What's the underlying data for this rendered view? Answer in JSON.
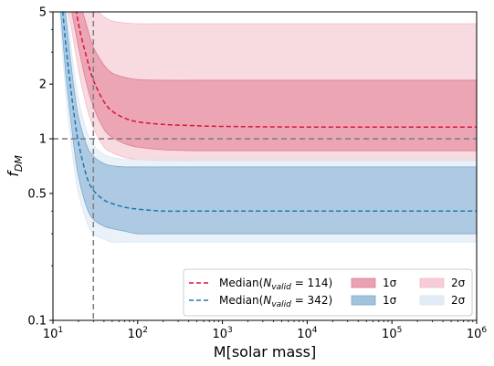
{
  "chart_data": {
    "type": "area",
    "xlabel": "M[solar mass]",
    "ylabel": "f_DM",
    "x_scale": "log",
    "y_scale": "log",
    "xlim": [
      10,
      1000000
    ],
    "ylim": [
      0.1,
      5
    ],
    "x_ticks": [
      10,
      100,
      1000,
      10000,
      100000,
      1000000
    ],
    "x_tick_labels": [
      {
        "base": "10",
        "exp": "1"
      },
      {
        "base": "10",
        "exp": "2"
      },
      {
        "base": "10",
        "exp": "3"
      },
      {
        "base": "10",
        "exp": "4"
      },
      {
        "base": "10",
        "exp": "5"
      },
      {
        "base": "10",
        "exp": "6"
      }
    ],
    "y_ticks": [
      0.1,
      0.5,
      1,
      2,
      5
    ],
    "y_tick_labels": [
      "0.1",
      "0.5",
      "1",
      "2",
      "5"
    ],
    "grid": false,
    "legend_position": "lower-right",
    "reference_lines": [
      {
        "orientation": "horizontal",
        "value": 1,
        "style": "dashed",
        "color": "#808080"
      },
      {
        "orientation": "vertical",
        "value": 30,
        "style": "dashed",
        "color": "#808080"
      }
    ],
    "series": [
      {
        "key": "red",
        "name": "Median(N_valid = 114)",
        "legend_median": {
          "prefix": "Median(",
          "sub": "valid",
          "value": " = 114)"
        },
        "legend_1sigma": "1σ",
        "legend_2sigma": "2σ",
        "color": "#dc143c",
        "band1_color": "#e07a90",
        "band2_color": "#f3bcc8",
        "x": [
          12,
          16,
          20,
          25,
          30,
          40,
          50,
          70,
          100,
          200,
          500,
          1000,
          10000,
          100000,
          1000000
        ],
        "median": [
          14,
          8,
          4.3,
          2.8,
          2.1,
          1.6,
          1.42,
          1.3,
          1.24,
          1.2,
          1.18,
          1.17,
          1.16,
          1.16,
          1.16
        ],
        "lower_1sigma": [
          10,
          5.5,
          3.2,
          2.0,
          1.5,
          1.13,
          1.02,
          0.94,
          0.9,
          0.87,
          0.86,
          0.86,
          0.86,
          0.86,
          0.86
        ],
        "upper_1sigma": [
          18,
          11,
          6.2,
          4.2,
          3.2,
          2.55,
          2.3,
          2.18,
          2.12,
          2.1,
          2.1,
          2.1,
          2.1,
          2.1,
          2.1
        ],
        "lower_2sigma": [
          8,
          4.4,
          2.4,
          1.5,
          1.15,
          0.9,
          0.84,
          0.79,
          0.77,
          0.76,
          0.76,
          0.76,
          0.76,
          0.76,
          0.76
        ],
        "upper_2sigma": [
          20,
          14,
          9,
          6.5,
          5.4,
          4.7,
          4.45,
          4.35,
          4.3,
          4.3,
          4.3,
          4.3,
          4.3,
          4.3,
          4.3
        ]
      },
      {
        "key": "blue",
        "name": "Median(N_valid = 342)",
        "legend_median": {
          "prefix": "Median(",
          "sub": "valid",
          "value": " = 342)"
        },
        "legend_1sigma": "1σ",
        "legend_2sigma": "2σ",
        "color": "#1f77b4",
        "band1_color": "#7aa9cf",
        "band2_color": "#d9e6f2",
        "x": [
          12,
          14,
          16,
          18,
          20,
          25,
          30,
          40,
          50,
          70,
          100,
          200,
          500,
          1000,
          10000,
          100000,
          1000000
        ],
        "median": [
          8,
          3.5,
          2.0,
          1.3,
          0.95,
          0.62,
          0.52,
          0.46,
          0.44,
          0.42,
          0.41,
          0.4,
          0.4,
          0.4,
          0.4,
          0.4,
          0.4
        ],
        "lower_1sigma": [
          6,
          2.4,
          1.35,
          0.85,
          0.62,
          0.42,
          0.36,
          0.33,
          0.32,
          0.31,
          0.3,
          0.3,
          0.3,
          0.3,
          0.3,
          0.3,
          0.3
        ],
        "upper_1sigma": [
          10,
          5.0,
          2.8,
          1.8,
          1.32,
          0.92,
          0.8,
          0.73,
          0.71,
          0.7,
          0.7,
          0.7,
          0.7,
          0.7,
          0.7,
          0.7,
          0.7
        ],
        "lower_2sigma": [
          5,
          1.9,
          1.05,
          0.67,
          0.5,
          0.35,
          0.3,
          0.28,
          0.27,
          0.27,
          0.27,
          0.27,
          0.27,
          0.27,
          0.27,
          0.27,
          0.27
        ],
        "upper_2sigma": [
          12,
          6.2,
          3.5,
          2.25,
          1.65,
          1.1,
          0.92,
          0.82,
          0.79,
          0.77,
          0.77,
          0.77,
          0.77,
          0.77,
          0.77,
          0.77,
          0.77
        ]
      }
    ]
  }
}
